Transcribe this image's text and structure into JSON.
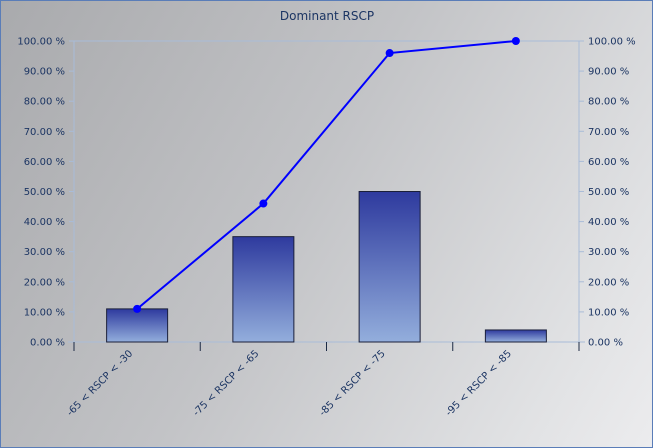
{
  "chart_data": {
    "type": "bar",
    "title": "Dominant RSCP",
    "xlabel": "",
    "ylabel": "",
    "categories": [
      "-65 < RSCP < -30",
      "-75 < RSCP < -65",
      "-85 < RSCP < -75",
      "-95 < RSCP < -85"
    ],
    "series": [
      {
        "type": "bar",
        "values": [
          11,
          35,
          50,
          4
        ]
      },
      {
        "type": "line",
        "axis": "right",
        "values": [
          11,
          46,
          96,
          100
        ]
      }
    ],
    "ylim": [
      0,
      100
    ],
    "y2lim": [
      0,
      100
    ],
    "yticks": [
      "0.00 %",
      "10.00 %",
      "20.00 %",
      "30.00 %",
      "40.00 %",
      "50.00 %",
      "60.00 %",
      "70.00 %",
      "80.00 %",
      "90.00 %",
      "100.00 %"
    ],
    "grid": false,
    "legend": "none",
    "colors": {
      "bar_top": "#2e3a9e",
      "bar_bottom": "#93aedc",
      "bar_edge": "#1a1f3a",
      "line": "#0000ff",
      "text": "#1c3563",
      "axis": "#a9bcd8"
    }
  }
}
